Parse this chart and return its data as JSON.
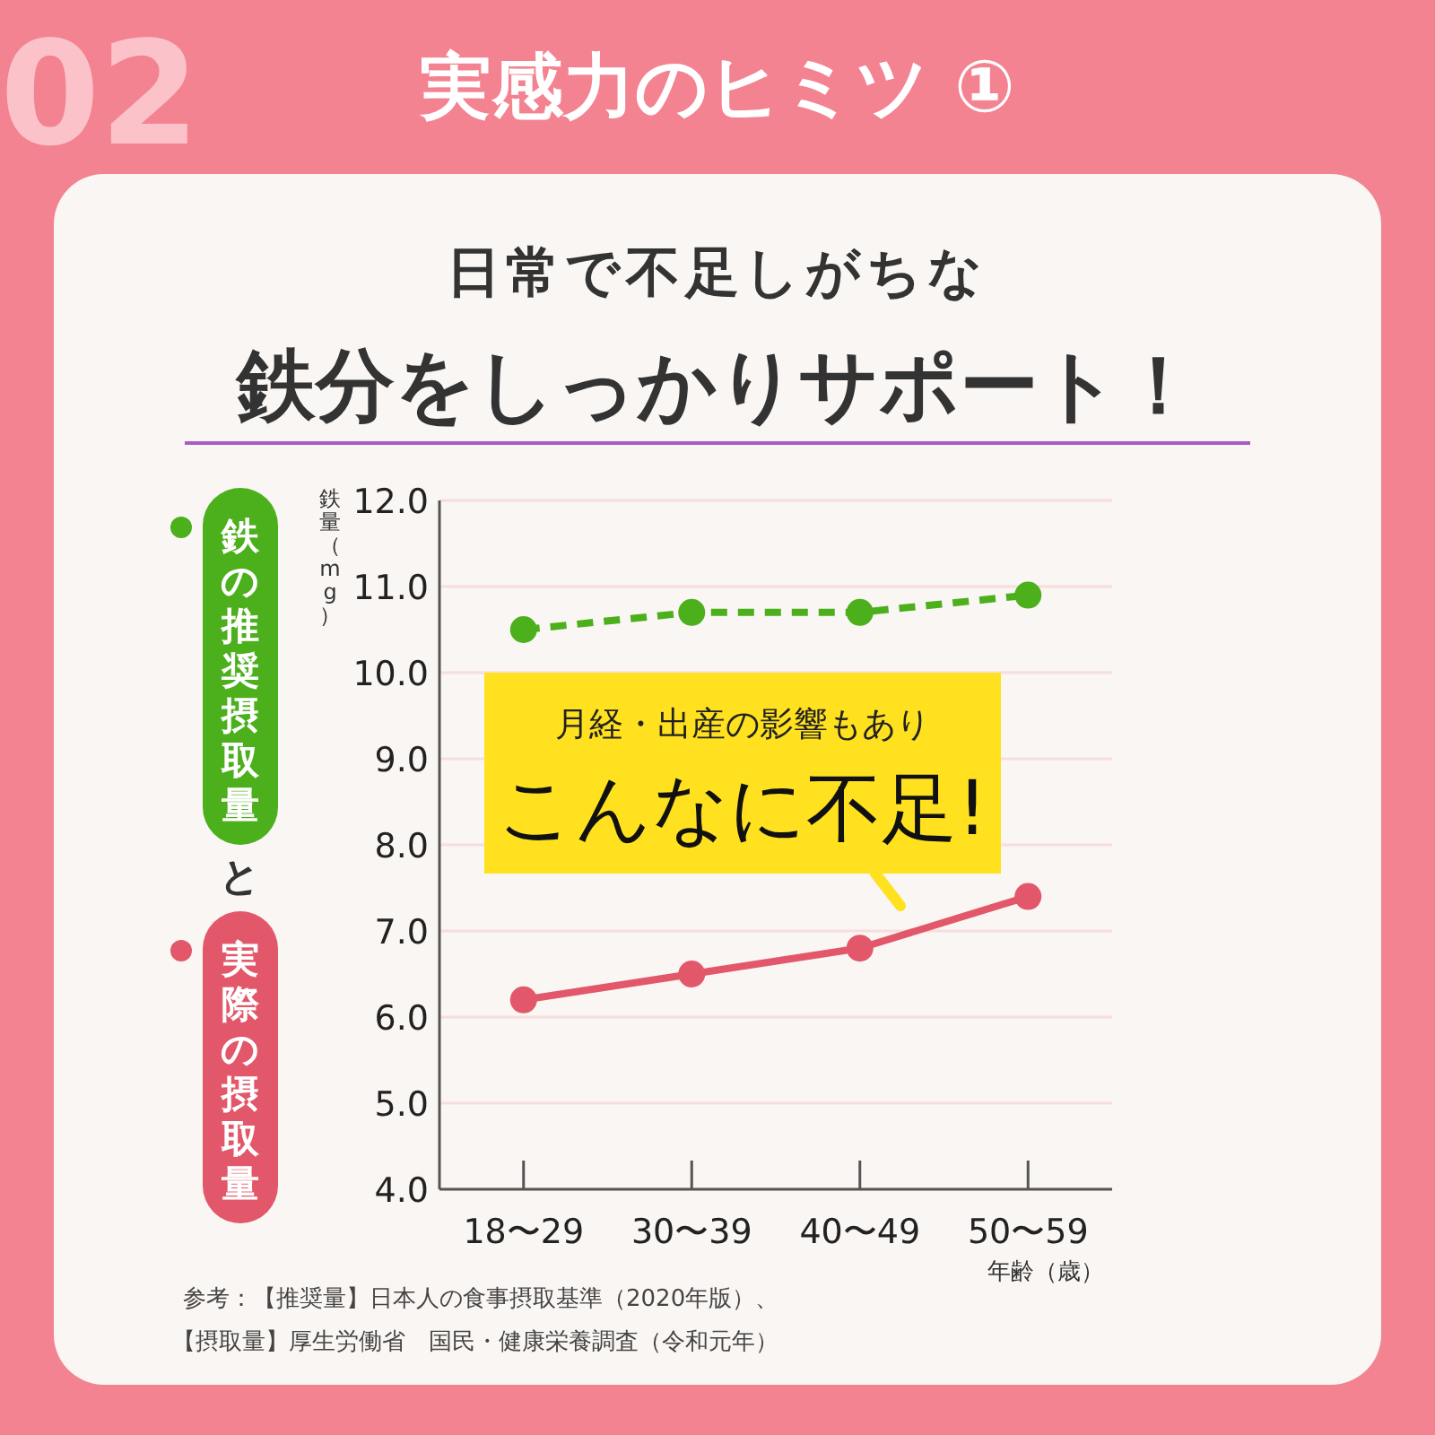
{
  "chart_data": {
    "type": "line",
    "title": "実感力のヒミツ ①",
    "subtitle": "日常で不足しがちな",
    "ylabel": "鉄量（mg）",
    "xlabel": "年齢（歳）",
    "categories": [
      "18〜29",
      "30〜39",
      "40〜49",
      "50〜59"
    ],
    "series": [
      {
        "name": "鉄の推奨摂取量",
        "color": "#4caf1c",
        "values": [
          10.5,
          10.7,
          10.7,
          10.9
        ],
        "line_style": "dashed"
      },
      {
        "name": "実際の摂取量",
        "color": "#e2586a",
        "values": [
          6.2,
          6.5,
          6.8,
          7.4
        ],
        "line_style": "solid"
      }
    ],
    "ylim": [
      4,
      12
    ],
    "yticks": [
      {
        "value": 4,
        "label": "4.0"
      },
      {
        "value": 5,
        "label": "5.0"
      },
      {
        "value": 6,
        "label": "6.0"
      },
      {
        "value": 7,
        "label": "7.0"
      },
      {
        "value": 8,
        "label": "8.0"
      },
      {
        "value": 9,
        "label": "9.0"
      },
      {
        "value": 10,
        "label": "10.0"
      },
      {
        "value": 11,
        "label": "11.0"
      },
      {
        "value": 12,
        "label": "12.0"
      }
    ],
    "grid": "y",
    "legend": "left",
    "marker": "circle",
    "annotations": [
      "02",
      "鉄分をしっかりサポート！",
      "と",
      "月経・出産の影響もあり",
      "こんなに不足!",
      "参考：【推奨量】日本人の食事摂取基準（2020年版）、",
      "【摂取量】厚生労働省　国民・健康栄養調査（令和元年）"
    ]
  }
}
